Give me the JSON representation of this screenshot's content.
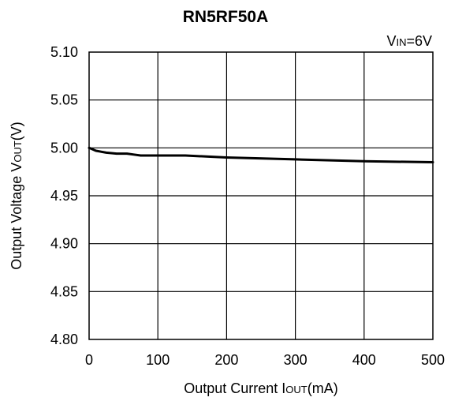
{
  "chart_data": {
    "type": "line",
    "title": "RN5RF50A",
    "annotation": {
      "main": "V",
      "sub": "IN",
      "rest": "=6V"
    },
    "xlabel": {
      "main": "Output Current I",
      "sub": "OUT",
      "rest": "(mA)"
    },
    "ylabel": {
      "main": "Output Voltage V",
      "sub": "OUT",
      "rest": "(V)"
    },
    "xlim": [
      0,
      500
    ],
    "ylim": [
      4.8,
      5.1
    ],
    "xticks": [
      0,
      100,
      200,
      300,
      400,
      500
    ],
    "xtick_labels": [
      "0",
      "100",
      "200",
      "300",
      "400",
      "500"
    ],
    "yticks": [
      4.8,
      4.85,
      4.9,
      4.95,
      5.0,
      5.05,
      5.1
    ],
    "ytick_labels": [
      "4.80",
      "4.85",
      "4.90",
      "4.95",
      "5.00",
      "5.05",
      "5.10"
    ],
    "grid": true,
    "series": [
      {
        "x": [
          0,
          10,
          25,
          40,
          55,
          65,
          75,
          100,
          140,
          200,
          300,
          400,
          500
        ],
        "y": [
          5.0,
          4.997,
          4.995,
          4.994,
          4.994,
          4.993,
          4.992,
          4.992,
          4.992,
          4.99,
          4.988,
          4.986,
          4.985
        ]
      }
    ]
  }
}
